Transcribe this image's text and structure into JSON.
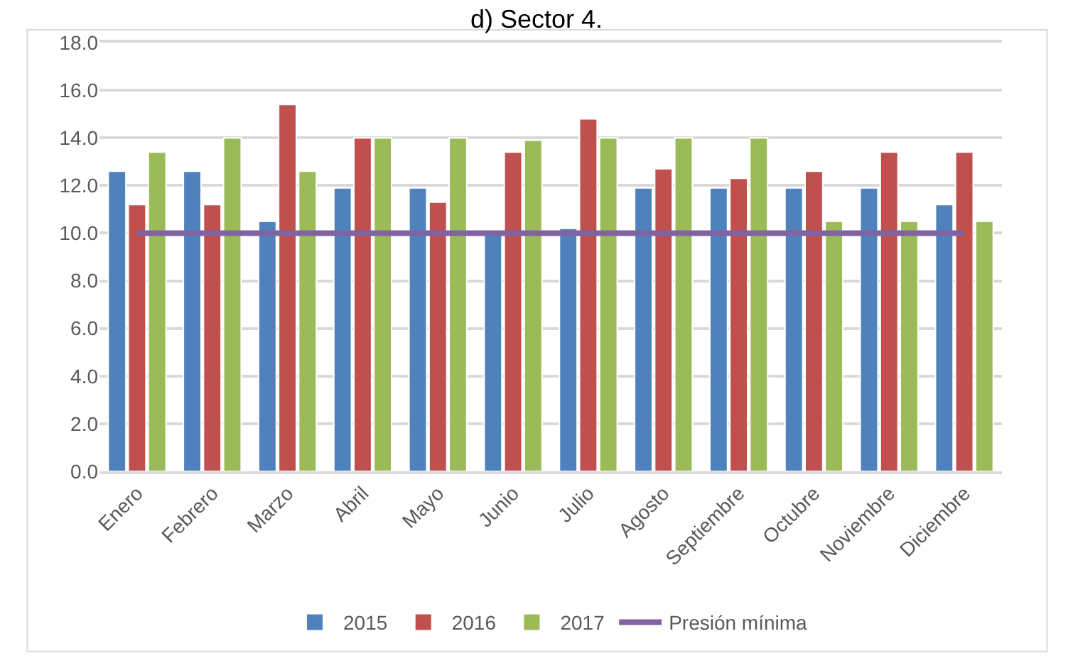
{
  "chart_data": {
    "type": "bar",
    "title": "d) Sector 4.",
    "categories": [
      "Enero",
      "Febrero",
      "Marzo",
      "Abril",
      "Mayo",
      "Junio",
      "Julio",
      "Agosto",
      "Septiembre",
      "Octubre",
      "Noviembre",
      "Diciembre"
    ],
    "series": [
      {
        "name": "2015",
        "color": "#4f81bd",
        "values": [
          12.6,
          12.6,
          10.5,
          11.9,
          11.9,
          10.0,
          10.2,
          11.9,
          11.9,
          11.9,
          11.9,
          11.2
        ]
      },
      {
        "name": "2016",
        "color": "#c0504d",
        "values": [
          11.2,
          11.2,
          15.4,
          14.0,
          11.3,
          13.4,
          14.8,
          12.7,
          12.3,
          12.6,
          13.4,
          13.4
        ]
      },
      {
        "name": "2017",
        "color": "#9bbb59",
        "values": [
          13.4,
          14.0,
          12.6,
          14.0,
          14.0,
          13.9,
          14.0,
          14.0,
          14.0,
          10.5,
          10.5,
          10.5
        ]
      },
      {
        "name": "Presión mínima",
        "type": "line",
        "color": "#8064a2",
        "values": [
          10,
          10,
          10,
          10,
          10,
          10,
          10,
          10,
          10,
          10,
          10,
          10
        ]
      }
    ],
    "ylim": [
      0,
      18
    ],
    "yticks": [
      {
        "value": 0,
        "label": "0.0"
      },
      {
        "value": 2,
        "label": "2.0"
      },
      {
        "value": 4,
        "label": "4.0"
      },
      {
        "value": 6,
        "label": "6.0"
      },
      {
        "value": 8,
        "label": "8.0"
      },
      {
        "value": 10,
        "label": "10.0"
      },
      {
        "value": 12,
        "label": "12.0"
      },
      {
        "value": 14,
        "label": "14.0"
      },
      {
        "value": 16,
        "label": "16.0"
      },
      {
        "value": 18,
        "label": "18.0"
      }
    ],
    "grid": "y",
    "legend": "bottom",
    "marker": "none"
  }
}
